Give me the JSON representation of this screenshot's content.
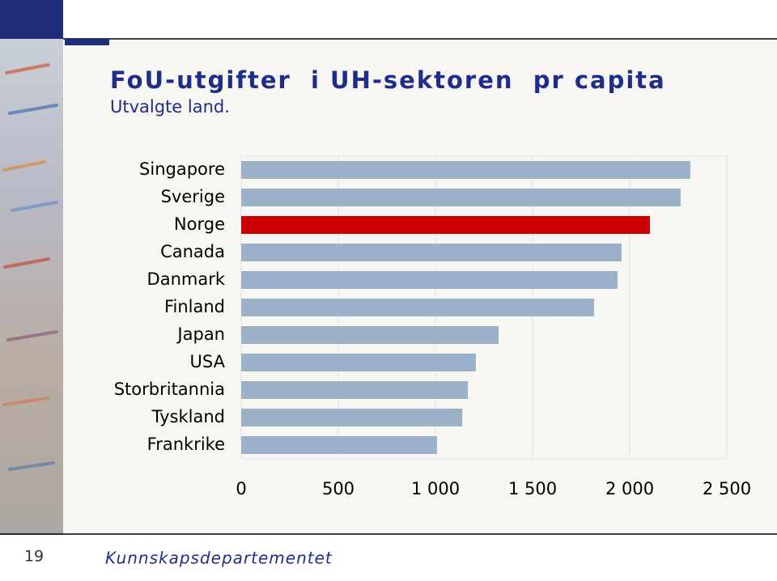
{
  "chart_data": {
    "type": "barh",
    "title": "FoU-utgifter  i UH-sektoren  pr capita",
    "subtitle": "Utvalgte land.",
    "categories": [
      "Singapore",
      "Sverige",
      "Norge",
      "Canada",
      "Danmark",
      "Finland",
      "Japan",
      "USA",
      "Storbritannia",
      "Tyskland",
      "Frankrike"
    ],
    "values": [
      2312,
      2262,
      2104,
      1958,
      1938,
      1817,
      1325,
      1208,
      1167,
      1138,
      1008
    ],
    "colors": [
      "#9bb0c9",
      "#9bb0c9",
      "#cc0000",
      "#9bb0c9",
      "#9bb0c9",
      "#9bb0c9",
      "#9bb0c9",
      "#9bb0c9",
      "#9bb0c9",
      "#9bb0c9",
      "#9bb0c9"
    ],
    "xlim": [
      0,
      2500
    ],
    "xticks": [
      0,
      500,
      {
        "value": 1000,
        "label": "1 000"
      },
      {
        "value": 1500,
        "label": "1 500"
      },
      {
        "value": 2000,
        "label": "2 000"
      },
      {
        "value": 2500,
        "label": "2 500"
      }
    ],
    "grid": true
  },
  "footer": {
    "page": "19",
    "organization": "Kunnskapsdepartementet"
  }
}
